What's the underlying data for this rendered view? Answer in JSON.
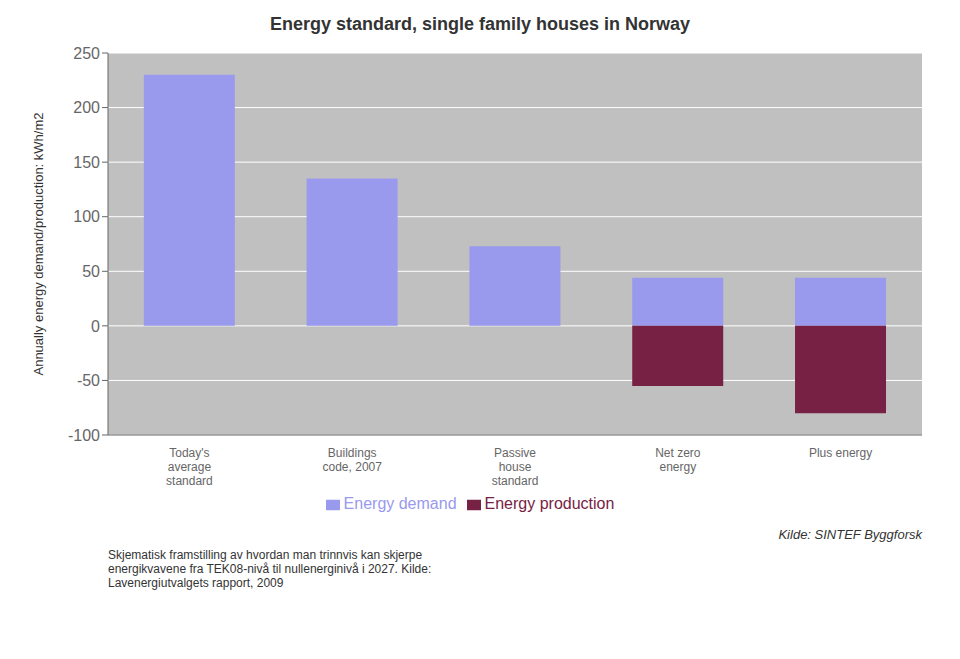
{
  "chart_data": {
    "type": "bar",
    "title": "Energy standard, single family houses in Norway",
    "ylabel": "Annually energy demand/production: kWh/m2",
    "categories": [
      "Today's\naverage\nstandard",
      "Buildings\ncode, 2007",
      "Passive\nhouse\nstandard",
      "Net zero\nenergy",
      "Plus energy"
    ],
    "series": [
      {
        "name": "Energy demand",
        "color": "#9999ee",
        "values": [
          230,
          135,
          73,
          44,
          44
        ]
      },
      {
        "name": "Energy production",
        "color": "#772244",
        "values": [
          0,
          0,
          0,
          -55,
          -80
        ]
      }
    ],
    "ylim": [
      -100,
      250
    ],
    "yticks": [
      -100,
      -50,
      0,
      50,
      100,
      150,
      200,
      250
    ],
    "grid": true,
    "legend": "bottom",
    "annotations": [
      "Kilde: SINTEF Byggforsk",
      "Skjematisk framstilling av hvordan man trinnvis kan skjerpe\nenergikvavene fra TEK08-nivå til nullenerginivå i 2027. Kilde:\nLavenergiutvalgets rapport, 2009"
    ]
  }
}
